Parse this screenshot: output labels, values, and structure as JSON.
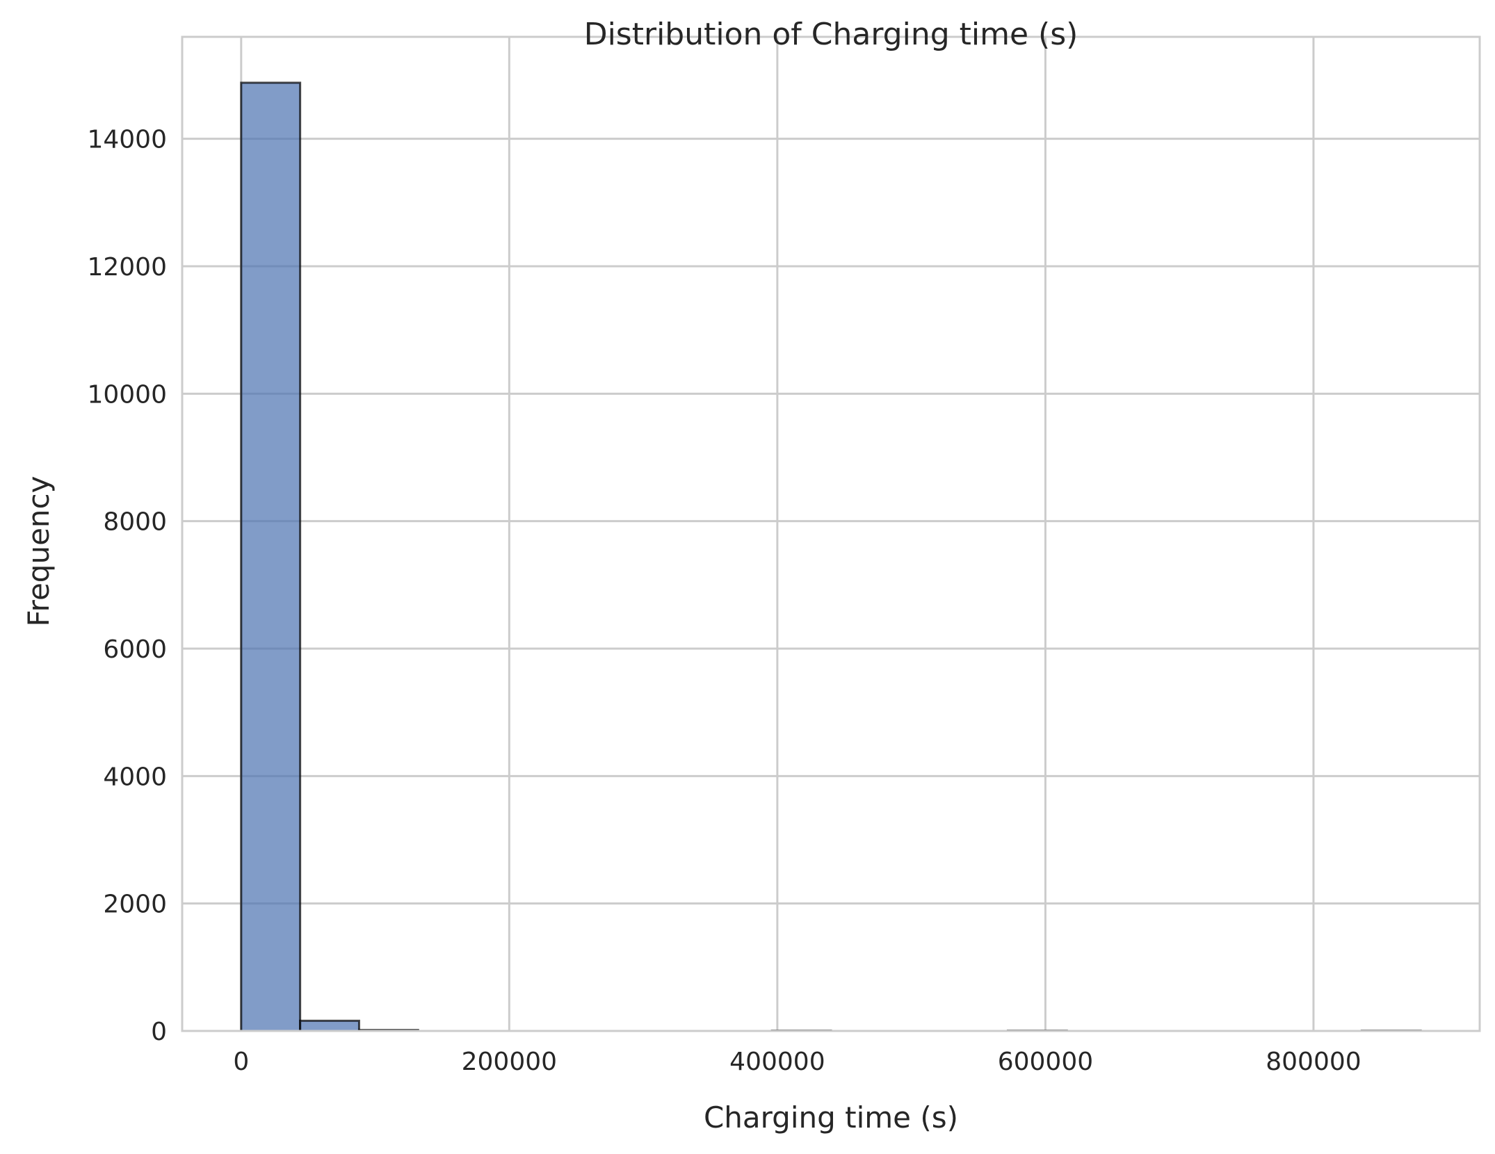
{
  "chart_data": {
    "type": "bar",
    "subtype": "histogram",
    "title": "Distribution of Charging time (s)",
    "xlabel": "Charging time (s)",
    "ylabel": "Frequency",
    "xlim": [
      -44000,
      924000
    ],
    "ylim": [
      0,
      15600
    ],
    "x_ticks": [
      0,
      200000,
      400000,
      600000,
      800000
    ],
    "x_tick_labels": [
      "0",
      "200000",
      "400000",
      "600000",
      "800000"
    ],
    "y_ticks": [
      0,
      2000,
      4000,
      6000,
      8000,
      10000,
      12000,
      14000
    ],
    "y_tick_labels": [
      "0",
      "2000",
      "4000",
      "6000",
      "8000",
      "10000",
      "12000",
      "14000"
    ],
    "bin_edges": [
      0,
      44000,
      88000,
      132000,
      176000,
      220000,
      264000,
      308000,
      352000,
      396000,
      440000,
      484000,
      528000,
      572000,
      616000,
      660000,
      704000,
      748000,
      792000,
      836000,
      880000
    ],
    "counts": [
      14880,
      160,
      15,
      0,
      0,
      0,
      0,
      0,
      0,
      5,
      0,
      0,
      0,
      5,
      0,
      0,
      0,
      0,
      0,
      5
    ],
    "grid": true,
    "colors": {
      "bar_fill": "#4c72b0",
      "bar_edge": "#000000",
      "grid": "#cccccc",
      "spine": "#cccccc"
    }
  }
}
